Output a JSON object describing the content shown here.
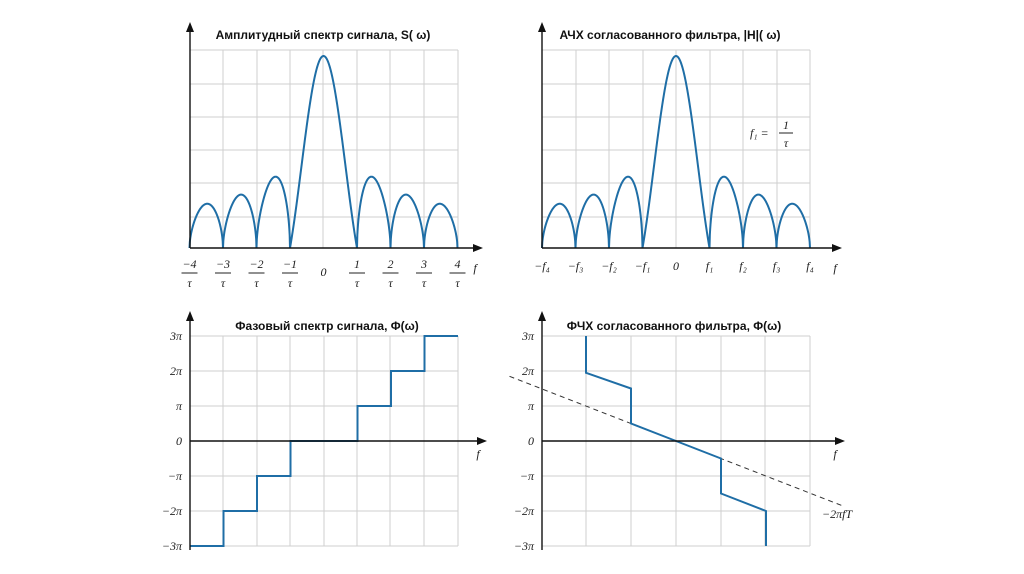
{
  "panels": {
    "amp_signal": {
      "title": "Амплитудный спектр сигнала, S( ω)",
      "axis_label": "f",
      "ticks": [
        {
          "num": "−4",
          "den": "τ"
        },
        {
          "num": "−3",
          "den": "τ"
        },
        {
          "num": "−2",
          "den": "τ"
        },
        {
          "num": "−1",
          "den": "τ"
        },
        {
          "num": "0",
          "den": ""
        },
        {
          "num": "1",
          "den": "τ"
        },
        {
          "num": "2",
          "den": "τ"
        },
        {
          "num": "3",
          "den": "τ"
        },
        {
          "num": "4",
          "den": "τ"
        }
      ]
    },
    "amp_filter": {
      "title": "АЧХ согласованного фильтра, |H|( ω)",
      "axis_label": "f",
      "ticks": [
        "−f₄",
        "−f₃",
        "−f₂",
        "−f₁",
        "0",
        "f₁",
        "f₂",
        "f₃",
        "f₄"
      ],
      "annotation": {
        "lhs": "f₁ =",
        "num": "1",
        "den": "τ"
      }
    },
    "phase_signal": {
      "title": "Фазовый спектр сигнала, Φ(ω)",
      "axis_label": "f",
      "y_ticks": [
        "3π",
        "2π",
        "π",
        "0",
        "−π",
        "−2π",
        "−3π"
      ]
    },
    "phase_filter": {
      "title": "ФЧХ согласованного фильтра, Φ(ω)",
      "axis_label": "f",
      "y_ticks": [
        "3π",
        "2π",
        "π",
        "0",
        "−π",
        "−2π",
        "−3π"
      ],
      "line_label": "−2πfT"
    }
  },
  "chart_data": [
    {
      "type": "line",
      "title": "Амплитудный спектр сигнала, S( ω)",
      "xlabel": "f",
      "ylabel": "",
      "x_ticks": [
        -4,
        -3,
        -2,
        -1,
        0,
        1,
        2,
        3,
        4
      ],
      "xlim": [
        -4.2,
        4.3
      ],
      "ylim": [
        0,
        1.2
      ],
      "grid": true,
      "series": [
        {
          "function": "|sinc(f·τ)|",
          "x_range": [
            -4,
            4
          ],
          "main_lobe_peak": 1.0,
          "side_lobe_peaks": [
            0.34,
            0.38,
            0.46,
            0.46,
            0.38,
            0.34
          ]
        }
      ]
    },
    {
      "type": "line",
      "title": "АЧХ согласованного фильтра, |H|( ω)",
      "xlabel": "f",
      "ylabel": "",
      "x_ticks": [
        "−f₄",
        "−f₃",
        "−f₂",
        "−f₁",
        "0",
        "f₁",
        "f₂",
        "f₃",
        "f₄"
      ],
      "xlim": [
        -4.2,
        4.5
      ],
      "ylim": [
        0,
        1.2
      ],
      "grid": true,
      "series": [
        {
          "function": "|sinc(f·τ)|",
          "x_range": [
            -4,
            4
          ],
          "main_lobe_peak": 1.0
        }
      ]
    },
    {
      "type": "line",
      "title": "Фазовый спектр сигнала, Φ(ω)",
      "xlabel": "f",
      "ylabel": "",
      "y_ticks": [
        "3π",
        "2π",
        "π",
        "0",
        "−π",
        "−2π",
        "−3π"
      ],
      "ylim": [
        -3,
        3
      ],
      "grid": true,
      "series": [
        {
          "step_points": [
            [
              -4,
              -3
            ],
            [
              -3,
              -3
            ],
            [
              -3,
              -2
            ],
            [
              -2,
              -2
            ],
            [
              -2,
              -1
            ],
            [
              -1,
              -1
            ],
            [
              -1,
              0
            ],
            [
              1,
              0
            ],
            [
              1,
              1
            ],
            [
              2,
              1
            ],
            [
              2,
              2
            ],
            [
              3,
              2
            ],
            [
              3,
              3
            ],
            [
              4,
              3
            ]
          ]
        }
      ]
    },
    {
      "type": "line",
      "title": "ФЧХ согласованного фильтра, Φ(ω)",
      "xlabel": "f",
      "ylabel": "",
      "y_ticks": [
        "3π",
        "2π",
        "π",
        "0",
        "−π",
        "−2π",
        "−3π"
      ],
      "ylim": [
        -3,
        3
      ],
      "grid": true,
      "series": [
        {
          "name": "",
          "points": [
            [
              -2,
              3
            ],
            [
              -2,
              1.95
            ],
            [
              -1,
              1.5
            ],
            [
              -1,
              0.5
            ],
            [
              0,
              0
            ],
            [
              1,
              -0.5
            ],
            [
              1,
              -1.5
            ],
            [
              2,
              -2
            ],
            [
              2,
              -3
            ]
          ]
        },
        {
          "name": "−2πfT",
          "style": "dashed",
          "points": [
            [
              -3.7,
              1.85
            ],
            [
              3.7,
              -1.85
            ]
          ]
        }
      ]
    }
  ]
}
